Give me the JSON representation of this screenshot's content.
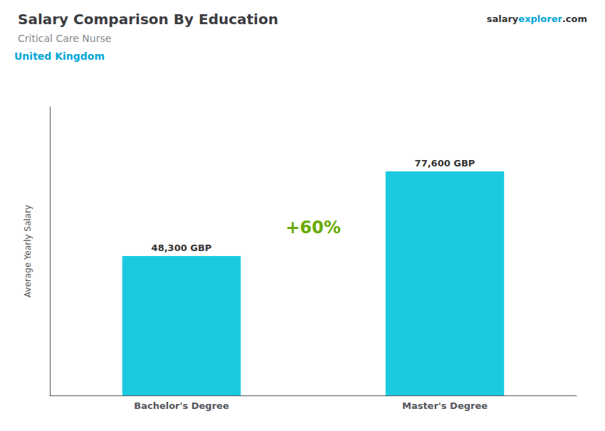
{
  "chart_data": {
    "type": "bar",
    "title": "Salary Comparison By Education",
    "subtitle": "Critical Care Nurse",
    "annotations": [
      "United Kingdom",
      "+60%",
      "salary",
      "explorer",
      ".com"
    ],
    "ylabel": "Average Yearly Salary",
    "categories": [
      "Bachelor's Degree",
      "Master's Degree"
    ],
    "values": [
      48300,
      77600
    ],
    "value_labels": [
      "48,300 GBP",
      "77,600 GBP"
    ],
    "data_labels": true,
    "color": "#1BCAE0",
    "ylim": [
      0,
      100000
    ],
    "grid": false,
    "tick_labels": "x"
  }
}
